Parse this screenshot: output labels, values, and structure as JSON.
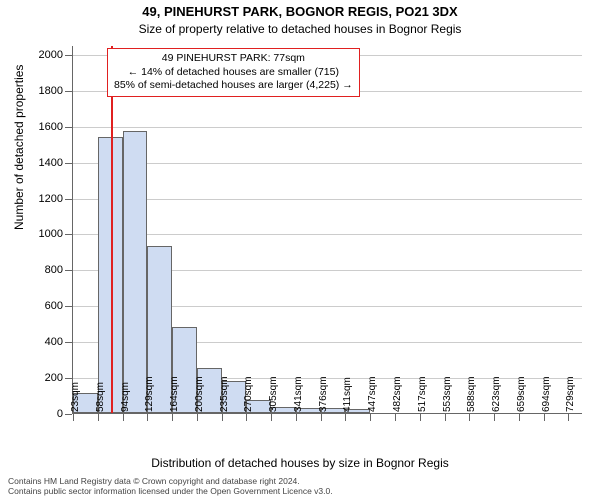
{
  "chart": {
    "type": "bar",
    "title": "49, PINEHURST PARK, BOGNOR REGIS, PO21 3DX",
    "subtitle": "Size of property relative to detached houses in Bognor Regis",
    "title_fontsize": 13,
    "subtitle_fontsize": 12,
    "y_axis_title": "Number of detached properties",
    "x_axis_title": "Distribution of detached houses by size in Bognor Regis",
    "axis_title_fontsize": 12,
    "tick_fontsize": 11,
    "bar_color": "#cfdcf2",
    "bar_border_color": "#666666",
    "grid_color": "#cccccc",
    "axis_color": "#666666",
    "background_color": "#ffffff",
    "reference_line_color": "#e02020",
    "reference_line_x": 77,
    "x_min": 23,
    "x_max": 750,
    "y_min": 0,
    "y_max": 2050,
    "y_ticks": [
      0,
      200,
      400,
      600,
      800,
      1000,
      1200,
      1400,
      1600,
      1800,
      2000
    ],
    "x_ticks": [
      {
        "pos": 23,
        "label": "23sqm"
      },
      {
        "pos": 58,
        "label": "58sqm"
      },
      {
        "pos": 94,
        "label": "94sqm"
      },
      {
        "pos": 129,
        "label": "129sqm"
      },
      {
        "pos": 164,
        "label": "164sqm"
      },
      {
        "pos": 200,
        "label": "200sqm"
      },
      {
        "pos": 235,
        "label": "235sqm"
      },
      {
        "pos": 270,
        "label": "270sqm"
      },
      {
        "pos": 305,
        "label": "305sqm"
      },
      {
        "pos": 341,
        "label": "341sqm"
      },
      {
        "pos": 376,
        "label": "376sqm"
      },
      {
        "pos": 411,
        "label": "411sqm"
      },
      {
        "pos": 447,
        "label": "447sqm"
      },
      {
        "pos": 482,
        "label": "482sqm"
      },
      {
        "pos": 517,
        "label": "517sqm"
      },
      {
        "pos": 553,
        "label": "553sqm"
      },
      {
        "pos": 588,
        "label": "588sqm"
      },
      {
        "pos": 623,
        "label": "623sqm"
      },
      {
        "pos": 659,
        "label": "659sqm"
      },
      {
        "pos": 694,
        "label": "694sqm"
      },
      {
        "pos": 729,
        "label": "729sqm"
      }
    ],
    "bars": [
      {
        "x0": 23,
        "x1": 58,
        "y": 110
      },
      {
        "x0": 58,
        "x1": 94,
        "y": 1540
      },
      {
        "x0": 94,
        "x1": 129,
        "y": 1570
      },
      {
        "x0": 129,
        "x1": 164,
        "y": 930
      },
      {
        "x0": 164,
        "x1": 200,
        "y": 480
      },
      {
        "x0": 200,
        "x1": 235,
        "y": 250
      },
      {
        "x0": 235,
        "x1": 270,
        "y": 180
      },
      {
        "x0": 270,
        "x1": 305,
        "y": 70
      },
      {
        "x0": 305,
        "x1": 341,
        "y": 35
      },
      {
        "x0": 341,
        "x1": 376,
        "y": 30
      },
      {
        "x0": 376,
        "x1": 411,
        "y": 28
      },
      {
        "x0": 411,
        "x1": 447,
        "y": 25
      }
    ],
    "annotation": {
      "line1": "49 PINEHURST PARK: 77sqm",
      "line2": "← 14% of detached houses are smaller (715)",
      "line3": "85% of semi-detached houses are larger (4,225) →",
      "border_color": "#e02020",
      "fontsize": 10.5
    },
    "footer": {
      "line1": "Contains HM Land Registry data © Crown copyright and database right 2024.",
      "line2": "Contains public sector information licensed under the Open Government Licence v3.0.",
      "fontsize": 8.5,
      "color": "#444444"
    }
  }
}
